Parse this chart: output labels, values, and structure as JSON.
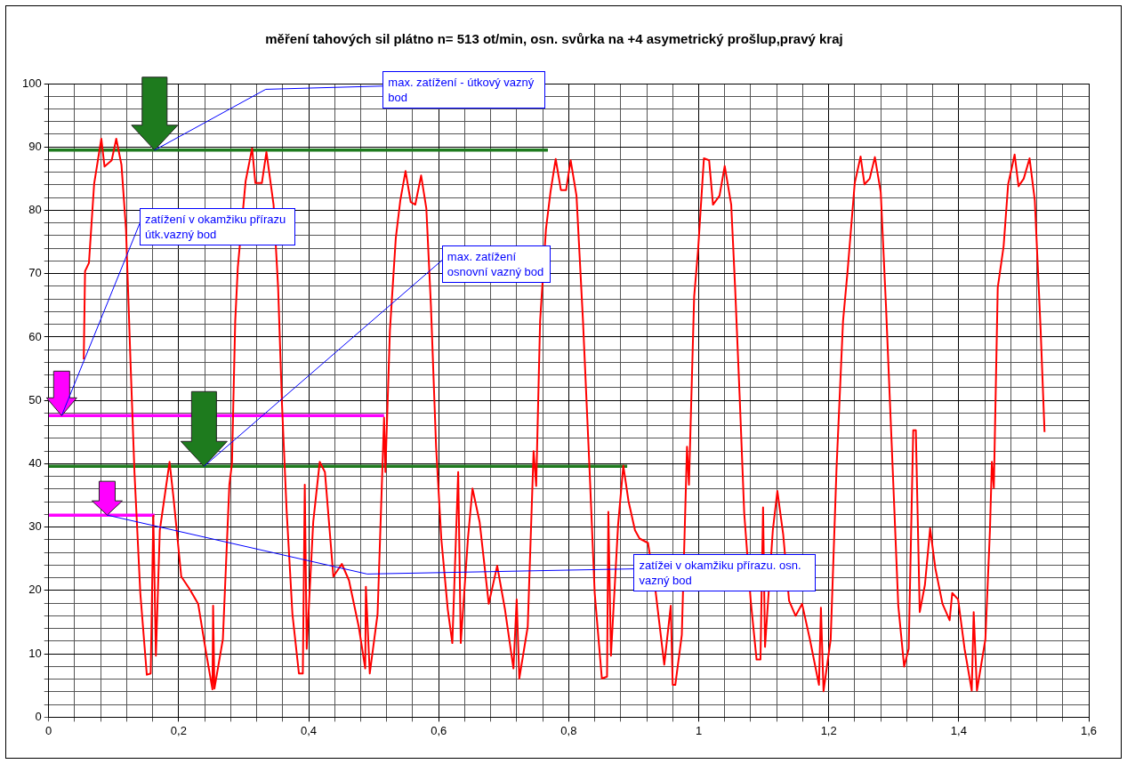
{
  "chart_data": {
    "type": "line",
    "title": "měření tahových sil plátno n= 513 ot/min, osn. svůrka na +4 asymetrický prošlup,pravý kraj",
    "series": [
      {
        "color": "#ff0000",
        "x": [
          0.054,
          0.056,
          0.062,
          0.07,
          0.081,
          0.086,
          0.097,
          0.104,
          0.112,
          0.119,
          0.126,
          0.132,
          0.141,
          0.151,
          0.157,
          0.161,
          0.165,
          0.171,
          0.186,
          0.192,
          0.204,
          0.217,
          0.23,
          0.242,
          0.252,
          0.253,
          0.255,
          0.268,
          0.278,
          0.282,
          0.287,
          0.291,
          0.303,
          0.313,
          0.318,
          0.328,
          0.335,
          0.346,
          0.353,
          0.359,
          0.366,
          0.375,
          0.385,
          0.391,
          0.394,
          0.397,
          0.407,
          0.417,
          0.425,
          0.438,
          0.451,
          0.462,
          0.477,
          0.487,
          0.488,
          0.494,
          0.506,
          0.516,
          0.518,
          0.525,
          0.534,
          0.541,
          0.549,
          0.557,
          0.564,
          0.573,
          0.581,
          0.588,
          0.596,
          0.604,
          0.614,
          0.621,
          0.63,
          0.634,
          0.645,
          0.652,
          0.663,
          0.677,
          0.69,
          0.702,
          0.715,
          0.72,
          0.724,
          0.737,
          0.746,
          0.75,
          0.756,
          0.765,
          0.772,
          0.78,
          0.788,
          0.796,
          0.803,
          0.812,
          0.822,
          0.832,
          0.84,
          0.851,
          0.859,
          0.861,
          0.865,
          0.876,
          0.884,
          0.892,
          0.902,
          0.909,
          0.922,
          0.934,
          0.947,
          0.957,
          0.96,
          0.964,
          0.974,
          0.982,
          0.985,
          0.993,
          0.999,
          1.008,
          1.016,
          1.022,
          1.032,
          1.04,
          1.05,
          1.056,
          1.063,
          1.07,
          1.08,
          1.089,
          1.095,
          1.099,
          1.102,
          1.114,
          1.121,
          1.13,
          1.139,
          1.149,
          1.159,
          1.171,
          1.185,
          1.188,
          1.192,
          1.203,
          1.212,
          1.222,
          1.229,
          1.24,
          1.249,
          1.255,
          1.263,
          1.271,
          1.28,
          1.288,
          1.297,
          1.307,
          1.316,
          1.323,
          1.33,
          1.334,
          1.34,
          1.348,
          1.356,
          1.364,
          1.375,
          1.386,
          1.39,
          1.399,
          1.409,
          1.42,
          1.423,
          1.428,
          1.441,
          1.448,
          1.451,
          1.454,
          1.46,
          1.469,
          1.476,
          1.486,
          1.492,
          1.5,
          1.509,
          1.517,
          1.526,
          1.532
        ],
        "values": [
          56.5,
          70.4,
          71.7,
          84.2,
          91.3,
          86.9,
          87.9,
          91.3,
          87.2,
          77.0,
          55.9,
          38.7,
          19.6,
          6.7,
          6.9,
          31.8,
          9.7,
          29.5,
          40.3,
          34.7,
          22.2,
          20.2,
          17.9,
          10.3,
          4.4,
          17.6,
          4.5,
          12.3,
          36.7,
          40.0,
          62.5,
          71.0,
          84.6,
          89.8,
          84.3,
          84.3,
          89.2,
          80.9,
          67.8,
          49.3,
          32.8,
          16.3,
          6.9,
          6.9,
          36.7,
          10.8,
          30.8,
          40.3,
          38.7,
          22.2,
          24.2,
          21.6,
          14.3,
          7.7,
          20.6,
          6.9,
          16.3,
          47.3,
          38.7,
          61.1,
          75.6,
          81.6,
          86.2,
          81.3,
          80.9,
          85.5,
          80.3,
          65.1,
          42.7,
          28.2,
          17.0,
          11.7,
          38.7,
          11.7,
          28.2,
          36.1,
          30.8,
          17.9,
          23.9,
          17.0,
          7.7,
          18.6,
          6.1,
          14.3,
          42.0,
          36.5,
          62.5,
          77.0,
          82.9,
          88.1,
          83.2,
          83.2,
          87.9,
          82.3,
          62.5,
          39.3,
          19.6,
          6.1,
          6.4,
          32.4,
          9.7,
          30.4,
          39.7,
          34.1,
          29.5,
          28.2,
          27.5,
          19.6,
          8.3,
          17.6,
          5.1,
          5.1,
          13.0,
          42.7,
          36.7,
          66.4,
          73.7,
          88.2,
          87.9,
          80.9,
          82.3,
          87.0,
          80.9,
          67.8,
          50.6,
          32.2,
          18.4,
          9.1,
          9.1,
          33.1,
          11.1,
          29.5,
          35.7,
          28.8,
          18.4,
          16.0,
          17.9,
          12.3,
          5.1,
          17.3,
          4.1,
          12.3,
          39.3,
          62.5,
          70.4,
          84.3,
          88.5,
          84.1,
          85.0,
          88.4,
          82.9,
          65.1,
          42.7,
          17.6,
          8.0,
          10.8,
          45.3,
          45.3,
          16.6,
          20.9,
          29.8,
          23.5,
          17.9,
          15.3,
          19.6,
          18.6,
          10.8,
          4.2,
          16.6,
          4.2,
          12.3,
          29.5,
          40.3,
          36.2,
          67.8,
          74.3,
          84.1,
          88.8,
          83.8,
          85.0,
          88.2,
          81.6,
          61.1,
          45.0
        ]
      },
      {
        "color": "#1e7b1e",
        "x": [
          0,
          0.768
        ],
        "values": [
          89.5,
          89.5
        ]
      },
      {
        "color": "#ff00ff",
        "x": [
          0,
          0.516
        ],
        "values": [
          47.6,
          47.6
        ]
      },
      {
        "color": "#1e7b1e",
        "x": [
          0,
          0.89
        ],
        "values": [
          39.6,
          39.6
        ]
      },
      {
        "color": "#ff00ff",
        "x": [
          0,
          0.163
        ],
        "values": [
          31.9,
          31.9
        ]
      }
    ],
    "xlim": [
      0,
      1.6
    ],
    "xticks": [
      0,
      {
        "value": 0.04,
        "label": null
      },
      {
        "value": 0.08,
        "label": null
      },
      {
        "value": 0.12,
        "label": null
      },
      {
        "value": 0.16,
        "label": null
      },
      {
        "value": 0.2,
        "label": "0,2"
      },
      {
        "value": 0.24,
        "label": null
      },
      {
        "value": 0.28,
        "label": null
      },
      {
        "value": 0.32,
        "label": null
      },
      {
        "value": 0.36,
        "label": null
      },
      {
        "value": 0.4,
        "label": "0,4"
      },
      {
        "value": 0.44,
        "label": null
      },
      {
        "value": 0.48,
        "label": null
      },
      {
        "value": 0.52,
        "label": null
      },
      {
        "value": 0.56,
        "label": null
      },
      {
        "value": 0.6,
        "label": "0,6"
      },
      {
        "value": 0.64,
        "label": null
      },
      {
        "value": 0.68,
        "label": null
      },
      {
        "value": 0.72,
        "label": null
      },
      {
        "value": 0.76,
        "label": null
      },
      {
        "value": 0.8,
        "label": "0,8"
      },
      {
        "value": 0.84,
        "label": null
      },
      {
        "value": 0.88,
        "label": null
      },
      {
        "value": 0.92,
        "label": null
      },
      {
        "value": 0.96,
        "label": null
      },
      1,
      {
        "value": 1.04,
        "label": null
      },
      {
        "value": 1.08,
        "label": null
      },
      {
        "value": 1.12,
        "label": null
      },
      {
        "value": 1.16,
        "label": null
      },
      {
        "value": 1.2,
        "label": "1,2"
      },
      {
        "value": 1.24,
        "label": null
      },
      {
        "value": 1.28,
        "label": null
      },
      {
        "value": 1.32,
        "label": null
      },
      {
        "value": 1.36,
        "label": null
      },
      {
        "value": 1.4,
        "label": "1,4"
      },
      {
        "value": 1.44,
        "label": null
      },
      {
        "value": 1.48,
        "label": null
      },
      {
        "value": 1.52,
        "label": null
      },
      {
        "value": 1.56,
        "label": null
      },
      {
        "value": 1.6,
        "label": "1,6"
      }
    ],
    "ylim": [
      0,
      100
    ],
    "yticks": [
      0,
      {
        "value": 2,
        "label": null
      },
      {
        "value": 4,
        "label": null
      },
      {
        "value": 6,
        "label": null
      },
      {
        "value": 8,
        "label": null
      },
      10,
      {
        "value": 12,
        "label": null
      },
      {
        "value": 14,
        "label": null
      },
      {
        "value": 16,
        "label": null
      },
      {
        "value": 18,
        "label": null
      },
      20,
      {
        "value": 22,
        "label": null
      },
      {
        "value": 24,
        "label": null
      },
      {
        "value": 26,
        "label": null
      },
      {
        "value": 28,
        "label": null
      },
      30,
      {
        "value": 32,
        "label": null
      },
      {
        "value": 34,
        "label": null
      },
      {
        "value": 36,
        "label": null
      },
      {
        "value": 38,
        "label": null
      },
      40,
      {
        "value": 42,
        "label": null
      },
      {
        "value": 44,
        "label": null
      },
      {
        "value": 46,
        "label": null
      },
      {
        "value": 48,
        "label": null
      },
      50,
      {
        "value": 52,
        "label": null
      },
      {
        "value": 54,
        "label": null
      },
      {
        "value": 56,
        "label": null
      },
      {
        "value": 58,
        "label": null
      },
      60,
      {
        "value": 62,
        "label": null
      },
      {
        "value": 64,
        "label": null
      },
      {
        "value": 66,
        "label": null
      },
      {
        "value": 68,
        "label": null
      },
      70,
      {
        "value": 72,
        "label": null
      },
      {
        "value": 74,
        "label": null
      },
      {
        "value": 76,
        "label": null
      },
      {
        "value": 78,
        "label": null
      },
      80,
      {
        "value": 82,
        "label": null
      },
      {
        "value": 84,
        "label": null
      },
      {
        "value": 86,
        "label": null
      },
      {
        "value": 88,
        "label": null
      },
      90,
      {
        "value": 92,
        "label": null
      },
      {
        "value": 94,
        "label": null
      },
      {
        "value": 96,
        "label": null
      },
      {
        "value": 98,
        "label": null
      },
      100
    ],
    "grid": true,
    "marker": "none",
    "annotations": [
      {
        "text": "max. zatížení - útkový vazný bod",
        "x": 0.163,
        "y": 89.5
      },
      {
        "text": "zatížení v okamžiku přírazu útk.vazný bod",
        "x": 0.02,
        "y": 47.6
      },
      {
        "text": "max. zatížení osnovní vazný bod",
        "x": 0.239,
        "y": 39.6
      },
      {
        "text": "zatížei v okamžiku přírazu. osn. vazný bod",
        "x": 0.09,
        "y": 31.9
      }
    ]
  }
}
